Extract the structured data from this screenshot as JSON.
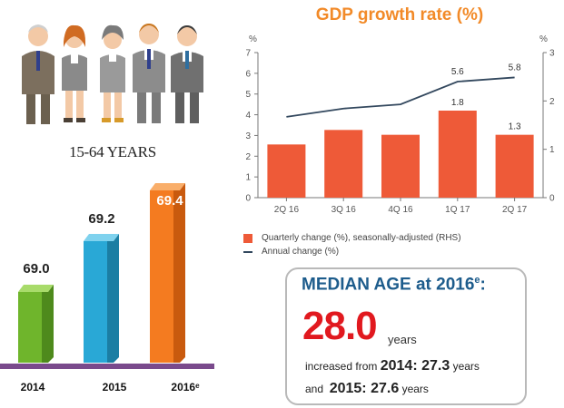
{
  "population": {
    "age_range": "15-64 YEARS",
    "items": [
      {
        "year": "2014",
        "value": "69.0",
        "color": "#8cc63f"
      },
      {
        "year": "2015",
        "value": "69.2",
        "color": "#29a8d6"
      },
      {
        "year": "2016ᵉ",
        "value": "69.4",
        "color": "#f47b20"
      }
    ]
  },
  "chart_data": {
    "type": "bar",
    "title": "GDP growth rate (%)",
    "categories": [
      "2Q 16",
      "3Q 16",
      "4Q 16",
      "1Q 17",
      "2Q 17"
    ],
    "y_left_label": "%",
    "y_right_label": "%",
    "ylim_left": [
      0,
      7
    ],
    "ylim_right": [
      0,
      3
    ],
    "yticks_left": [
      "0",
      "1",
      "2",
      "3",
      "4",
      "5",
      "6",
      "7"
    ],
    "yticks_right": [
      "0",
      "1",
      "2",
      "3"
    ],
    "series": [
      {
        "name": "Quarterly change (%), seasonally-adjusted (RHS)",
        "kind": "bar",
        "axis": "right",
        "values": [
          1.1,
          1.4,
          1.3,
          1.8,
          1.3
        ],
        "labels": [
          "",
          "",
          "",
          "1.8",
          "1.3"
        ],
        "color": "#ee5a38"
      },
      {
        "name": "Annual change (%)",
        "kind": "line",
        "axis": "left",
        "values": [
          3.9,
          4.3,
          4.5,
          5.6,
          5.8
        ],
        "labels": [
          "",
          "",
          "",
          "5.6",
          "5.8"
        ],
        "color": "#33485e"
      }
    ],
    "grid": false,
    "legend": "bottom-left"
  },
  "median": {
    "title": "MEDIAN AGE at 2016",
    "title_sup": "e",
    "title_suffix": ":",
    "value": "28.0",
    "unit": "years",
    "increased_text": "increased from",
    "increased_year": "2014: 27.3",
    "increased_unit": "years",
    "and_text": "and",
    "and_year": "2015: 27.6",
    "and_unit": "years"
  }
}
